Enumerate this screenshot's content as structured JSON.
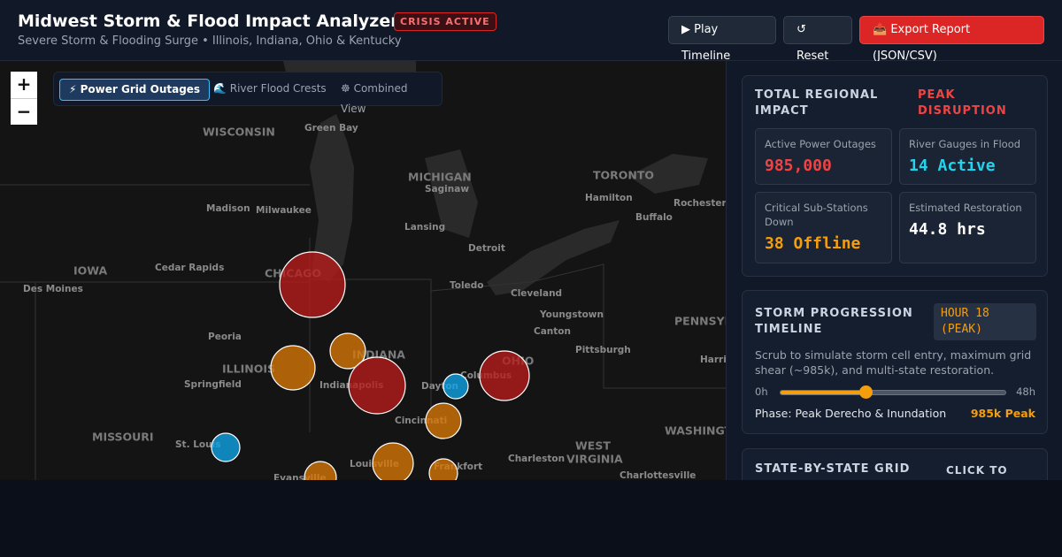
{
  "header": {
    "title": "Midwest Storm & Flood Impact Analyzer",
    "badge": "CRISIS ACTIVE",
    "subtitle": "Severe Storm & Flooding Surge • Illinois, Indiana, Ohio & Kentucky",
    "buttons": [
      "▶ Play Timeline",
      "↺ Reset",
      "📤 Export Report (JSON/CSV)"
    ]
  },
  "map": {
    "zoom_in": "+",
    "zoom_out": "−",
    "tabs": [
      "⚡ Power Grid Outages",
      "🌊 River Flood Crests",
      "☸ Combined View"
    ],
    "labels": [
      "WISCONSIN",
      "Green Bay",
      "MICHIGAN",
      "Saginaw",
      "TORONTO",
      "Hamilton",
      "Rochester",
      "Buffalo",
      "Madison",
      "Milwaukee",
      "Lansing",
      "Detroit",
      "IOWA",
      "Cedar Rapids",
      "Des Moines",
      "CHICAGO",
      "Toledo",
      "Cleveland",
      "Youngstown",
      "Canton",
      "PENNSYLV",
      "Peoria",
      "Pittsburgh",
      "ILLINOIS",
      "INDIANA",
      "OHIO",
      "Harris",
      "Springfield",
      "Indianapolis",
      "Dayton",
      "Columbus",
      "Cincinnati",
      "MISSOURI",
      "St. Louis",
      "WEST",
      "VIRGINIA",
      "WASHINGTO",
      "Charleston",
      "Louisville",
      "Frankfort",
      "Evansville",
      "Charlottesville"
    ]
  },
  "panel": {
    "impact": {
      "title": "TOTAL REGIONAL IMPACT",
      "status": "PEAK DISRUPTION",
      "stats": [
        {
          "label": "Active Power Outages",
          "value": "985,000"
        },
        {
          "label": "River Gauges in Flood",
          "value": "14 Active"
        },
        {
          "label": "Critical Sub-Stations Down",
          "value": "38 Offline"
        },
        {
          "label": "Estimated Restoration",
          "value": "44.8 hrs"
        }
      ]
    },
    "timeline": {
      "title": "STORM PROGRESSION TIMELINE",
      "badge": "HOUR 18 (PEAK)",
      "description": "Scrub to simulate storm cell entry, maximum grid shear (~985k), and multi-state restoration.",
      "slider_min": "0h",
      "slider_max": "48h",
      "phase": "Phase: Peak Derecho & Inundation",
      "peak": "985k Peak"
    },
    "grid": {
      "title": "STATE-BY-STATE GRID",
      "action": "CLICK TO"
    }
  }
}
